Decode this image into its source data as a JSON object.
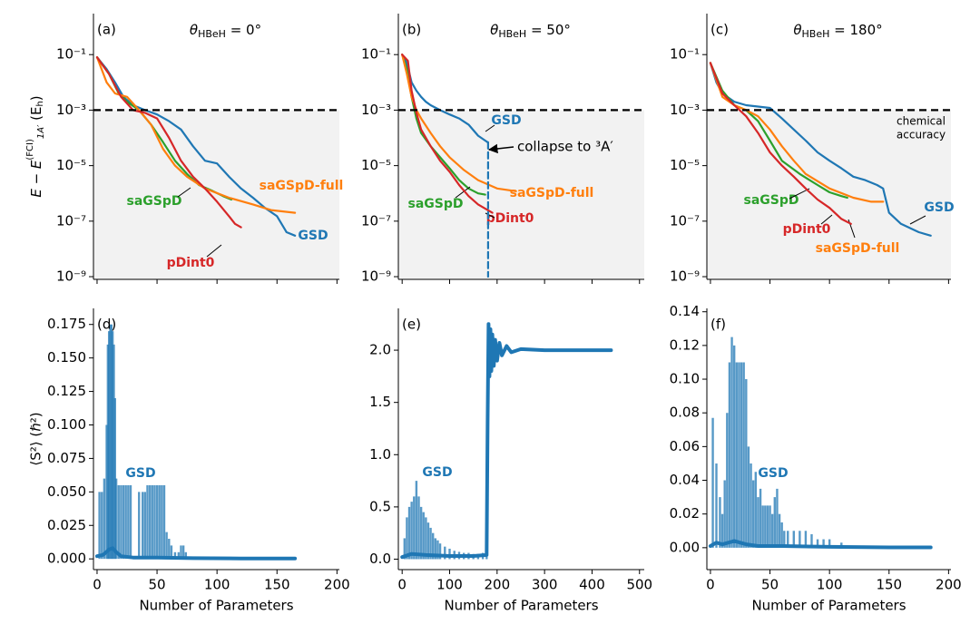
{
  "chart_data": [
    {
      "type": "line",
      "panel": "(a)",
      "title_symbol": "θ",
      "title_subscript": "HBeH",
      "title_rest": " = 0°",
      "log_y": true,
      "ylim": [
        8e-10,
        3
      ],
      "xlim": [
        -3,
        202
      ],
      "xticks": [
        0,
        50,
        100,
        150,
        200
      ],
      "xticklabels": false,
      "yticks": [
        {
          "value": 1e-09,
          "label": "10⁻⁹"
        },
        {
          "value": 1e-07,
          "label": "10⁻⁷"
        },
        {
          "value": 1e-05,
          "label": "10⁻⁵"
        },
        {
          "value": 0.001,
          "label": "10⁻³"
        },
        {
          "value": 0.1,
          "label": "10⁻¹"
        }
      ],
      "threshold": 0.001,
      "ylabel": {
        "main": "E − E",
        "sup": "(FCI)",
        "sub": "1A′",
        "unit": " (E",
        "unit_sub": "h",
        "close": ")"
      },
      "series": [
        {
          "name": "GSD",
          "color": "#1f77b4",
          "x": [
            0,
            8,
            15,
            22,
            30,
            40,
            50,
            60,
            70,
            80,
            90,
            100,
            110,
            120,
            130,
            140,
            150,
            158,
            165
          ],
          "values": [
            0.08,
            0.03,
            0.01,
            0.003,
            0.0015,
            0.001,
            0.0007,
            0.0004,
            0.0002,
            5e-05,
            1.5e-05,
            1.2e-05,
            4e-06,
            1.5e-06,
            7e-07,
            3e-07,
            1.5e-07,
            4e-08,
            3e-08
          ]
        },
        {
          "name": "saGSpD",
          "color": "#2ca02c",
          "x": [
            0,
            10,
            18,
            25,
            35,
            45,
            55,
            65,
            75,
            85,
            95,
            105,
            112
          ],
          "values": [
            0.08,
            0.02,
            0.004,
            0.002,
            0.001,
            0.0003,
            7e-05,
            1.5e-05,
            5e-06,
            2e-06,
            1.3e-06,
            8e-07,
            6e-07
          ]
        },
        {
          "name": "saGSpD-full",
          "color": "#ff7f0e",
          "x": [
            0,
            8,
            15,
            25,
            35,
            45,
            55,
            65,
            75,
            90,
            110,
            130,
            145,
            165
          ],
          "values": [
            0.08,
            0.01,
            0.004,
            0.003,
            0.001,
            0.0003,
            4e-05,
            1e-05,
            4e-06,
            1.5e-06,
            7e-07,
            4e-07,
            2.5e-07,
            2e-07
          ]
        },
        {
          "name": "pDint0",
          "color": "#d62728",
          "x": [
            0,
            10,
            20,
            30,
            40,
            50,
            60,
            70,
            80,
            90,
            100,
            110,
            115,
            120
          ],
          "values": [
            0.08,
            0.02,
            0.003,
            0.001,
            0.0008,
            0.0005,
            0.0001,
            1.5e-05,
            4e-06,
            1.5e-06,
            5e-07,
            1.5e-07,
            8e-08,
            6e-08
          ]
        }
      ]
    },
    {
      "type": "line",
      "panel": "(b)",
      "title_symbol": "θ",
      "title_subscript": "HBeH",
      "title_rest": " = 50°",
      "log_y": true,
      "ylim": [
        8e-10,
        3
      ],
      "xlim": [
        -8,
        510
      ],
      "xticks": [
        0,
        100,
        200,
        300,
        400,
        500
      ],
      "xticklabels": false,
      "yticks": [
        {
          "value": 1e-09,
          "label": "10⁻⁹"
        },
        {
          "value": 1e-07,
          "label": "10⁻⁷"
        },
        {
          "value": 1e-05,
          "label": "10⁻⁵"
        },
        {
          "value": 0.001,
          "label": "10⁻³"
        },
        {
          "value": 0.1,
          "label": "10⁻¹"
        }
      ],
      "threshold": 0.001,
      "annotations": [
        "collapse to ³A′"
      ],
      "series": [
        {
          "name": "GSD",
          "color": "#1f77b4",
          "x": [
            0,
            10,
            20,
            30,
            40,
            50,
            60,
            80,
            100,
            120,
            140,
            160,
            175,
            180
          ],
          "values": [
            0.1,
            0.05,
            0.01,
            0.005,
            0.003,
            0.002,
            0.0015,
            0.001,
            0.0007,
            0.0005,
            0.0003,
            0.00012,
            8e-05,
            7e-05
          ]
        },
        {
          "name": "saGSpD",
          "color": "#2ca02c",
          "x": [
            0,
            10,
            20,
            30,
            40,
            60,
            80,
            100,
            120,
            140,
            160,
            175
          ],
          "values": [
            0.1,
            0.03,
            0.003,
            0.0005,
            0.00015,
            5e-05,
            2e-05,
            8e-06,
            3e-06,
            1.5e-06,
            1e-06,
            9e-07
          ]
        },
        {
          "name": "saGSpD-full",
          "color": "#ff7f0e",
          "x": [
            0,
            10,
            20,
            30,
            40,
            60,
            80,
            100,
            130,
            160,
            200,
            240
          ],
          "values": [
            0.1,
            0.02,
            0.003,
            0.001,
            0.0005,
            0.00015,
            5e-05,
            2e-05,
            7e-06,
            3e-06,
            1.5e-06,
            1.2e-06
          ]
        },
        {
          "name": "pDint0",
          "color": "#d62728",
          "x": [
            0,
            12,
            20,
            30,
            40,
            60,
            80,
            100,
            120,
            140,
            160,
            180,
            190
          ],
          "values": [
            0.1,
            0.06,
            0.005,
            0.0008,
            0.0002,
            5e-05,
            1.5e-05,
            6e-06,
            2e-06,
            8e-07,
            4e-07,
            2.5e-07,
            2e-07
          ]
        },
        {
          "color": "#1f77b4",
          "dashed": true,
          "x": [
            181,
            181
          ],
          "values": [
            7e-05,
            1e-09
          ]
        }
      ]
    },
    {
      "type": "line",
      "panel": "(c)",
      "title_symbol": "θ",
      "title_subscript": "HBeH",
      "title_rest": " = 180°",
      "log_y": true,
      "ylim": [
        8e-10,
        3
      ],
      "xlim": [
        -3,
        202
      ],
      "xticks": [
        0,
        50,
        100,
        150,
        200
      ],
      "xticklabels": false,
      "yticks": [
        {
          "value": 1e-09,
          "label": "10⁻⁹"
        },
        {
          "value": 1e-07,
          "label": "10⁻⁷"
        },
        {
          "value": 1e-05,
          "label": "10⁻⁵"
        },
        {
          "value": 0.001,
          "label": "10⁻³"
        },
        {
          "value": 0.1,
          "label": "10⁻¹"
        }
      ],
      "threshold": 0.001,
      "annotations": [
        "chemical",
        "accuracy"
      ],
      "series": [
        {
          "name": "GSD",
          "color": "#1f77b4",
          "x": [
            0,
            5,
            10,
            20,
            30,
            50,
            60,
            70,
            80,
            90,
            100,
            110,
            120,
            130,
            140,
            145,
            150,
            160,
            175,
            185
          ],
          "values": [
            0.05,
            0.01,
            0.004,
            0.002,
            0.0015,
            0.0012,
            0.0005,
            0.0002,
            8e-05,
            3e-05,
            1.5e-05,
            8e-06,
            4e-06,
            3e-06,
            2e-06,
            1.5e-06,
            2e-07,
            8e-08,
            4e-08,
            3e-08
          ]
        },
        {
          "name": "saGSpD",
          "color": "#2ca02c",
          "x": [
            0,
            10,
            20,
            30,
            40,
            50,
            60,
            75,
            90,
            100,
            110,
            115
          ],
          "values": [
            0.05,
            0.005,
            0.0015,
            0.001,
            0.0004,
            8e-05,
            1.5e-05,
            5e-06,
            2e-06,
            1.1e-06,
            8e-07,
            7e-07
          ]
        },
        {
          "name": "saGSpD-full",
          "color": "#ff7f0e",
          "x": [
            0,
            10,
            20,
            30,
            40,
            50,
            60,
            70,
            80,
            100,
            120,
            135,
            145
          ],
          "values": [
            0.05,
            0.003,
            0.0015,
            0.001,
            0.0006,
            0.0002,
            5e-05,
            1.5e-05,
            5e-06,
            1.5e-06,
            7e-07,
            5e-07,
            5e-07
          ]
        },
        {
          "name": "pDint0",
          "color": "#d62728",
          "x": [
            0,
            10,
            20,
            30,
            40,
            50,
            60,
            70,
            80,
            90,
            100,
            110,
            118
          ],
          "values": [
            0.05,
            0.004,
            0.0015,
            0.0006,
            0.00015,
            3e-05,
            1e-05,
            4e-06,
            1.5e-06,
            6e-07,
            3e-07,
            1.2e-07,
            8e-08
          ]
        }
      ]
    },
    {
      "type": "bar",
      "panel": "(d)",
      "xlabel": "Number of Parameters",
      "ylabel_text": "⟨S²⟩ (ℏ²)",
      "ylim": [
        -0.008,
        0.187
      ],
      "xlim": [
        -3,
        202
      ],
      "xticks": [
        0,
        50,
        100,
        150,
        200
      ],
      "yticks": [
        {
          "value": 0,
          "label": "0.000"
        },
        {
          "value": 0.025,
          "label": "0.025"
        },
        {
          "value": 0.05,
          "label": "0.050"
        },
        {
          "value": 0.075,
          "label": "0.075"
        },
        {
          "value": 0.1,
          "label": "0.100"
        },
        {
          "value": 0.125,
          "label": "0.125"
        },
        {
          "value": 0.15,
          "label": "0.150"
        },
        {
          "value": 0.175,
          "label": "0.175"
        }
      ],
      "series": [
        {
          "name": "GSD",
          "color": "#1f77b4",
          "x": [
            2,
            4,
            6,
            8,
            9,
            10,
            11,
            12,
            13,
            14,
            15,
            16,
            18,
            20,
            22,
            24,
            26,
            28,
            35,
            38,
            40,
            42,
            44,
            46,
            48,
            50,
            52,
            54,
            56,
            58,
            60,
            62,
            65,
            68,
            70,
            72,
            74
          ],
          "values": [
            0.05,
            0.05,
            0.06,
            0.1,
            0.16,
            0.17,
            0.175,
            0.175,
            0.17,
            0.16,
            0.12,
            0.06,
            0.055,
            0.055,
            0.055,
            0.055,
            0.055,
            0.055,
            0.05,
            0.05,
            0.05,
            0.055,
            0.055,
            0.055,
            0.055,
            0.055,
            0.055,
            0.055,
            0.055,
            0.02,
            0.015,
            0.01,
            0.005,
            0.005,
            0.01,
            0.01,
            0.005
          ]
        },
        {
          "type": "line",
          "color": "#1f77b4",
          "x": [
            0,
            5,
            10,
            13,
            16,
            20,
            30,
            50,
            80,
            120,
            165
          ],
          "values": [
            0.002,
            0.003,
            0.007,
            0.008,
            0.005,
            0.002,
            0.001,
            0.001,
            0.0005,
            0.0003,
            0.0003
          ]
        }
      ]
    },
    {
      "type": "bar",
      "panel": "(e)",
      "xlabel": "Number of Parameters",
      "ylim": [
        -0.1,
        2.4
      ],
      "xlim": [
        -8,
        510
      ],
      "xticks": [
        0,
        100,
        200,
        300,
        400,
        500
      ],
      "yticks": [
        {
          "value": 0,
          "label": "0.0"
        },
        {
          "value": 0.5,
          "label": "0.5"
        },
        {
          "value": 1,
          "label": "1.0"
        },
        {
          "value": 1.5,
          "label": "1.5"
        },
        {
          "value": 2,
          "label": "2.0"
        }
      ],
      "series": [
        {
          "name": "GSD",
          "color": "#1f77b4",
          "x": [
            5,
            10,
            15,
            20,
            25,
            30,
            35,
            40,
            45,
            50,
            55,
            60,
            65,
            70,
            75,
            80,
            90,
            100,
            110,
            120,
            130,
            140,
            150,
            160,
            170,
            178
          ],
          "values": [
            0.2,
            0.4,
            0.5,
            0.55,
            0.6,
            0.75,
            0.6,
            0.5,
            0.45,
            0.4,
            0.35,
            0.3,
            0.25,
            0.2,
            0.18,
            0.15,
            0.12,
            0.1,
            0.08,
            0.07,
            0.06,
            0.06,
            0.05,
            0.05,
            0.06,
            0.07
          ]
        },
        {
          "type": "line",
          "color": "#1f77b4",
          "x": [
            0,
            20,
            50,
            100,
            150,
            178,
            180,
            182,
            184,
            186,
            188,
            190,
            193,
            196,
            200,
            205,
            210,
            220,
            230,
            250,
            300,
            350,
            400,
            440
          ],
          "values": [
            0.02,
            0.05,
            0.04,
            0.03,
            0.03,
            0.04,
            1.33,
            2.25,
            1.75,
            2.2,
            1.8,
            2.15,
            1.85,
            2.1,
            1.9,
            2.07,
            1.95,
            2.04,
            1.98,
            2.01,
            2.0,
            2.0,
            2.0,
            2.0
          ]
        }
      ]
    },
    {
      "type": "bar",
      "panel": "(f)",
      "xlabel": "Number of Parameters",
      "ylim": [
        -0.013,
        0.142
      ],
      "xlim": [
        -3,
        202
      ],
      "xticks": [
        0,
        50,
        100,
        150,
        200
      ],
      "yticks": [
        {
          "value": 0,
          "label": "0.00"
        },
        {
          "value": 0.02,
          "label": "0.02"
        },
        {
          "value": 0.04,
          "label": "0.04"
        },
        {
          "value": 0.06,
          "label": "0.06"
        },
        {
          "value": 0.08,
          "label": "0.08"
        },
        {
          "value": 0.1,
          "label": "0.10"
        },
        {
          "value": 0.12,
          "label": "0.12"
        },
        {
          "value": 0.14,
          "label": "0.14"
        }
      ],
      "series": [
        {
          "name": "GSD",
          "color": "#1f77b4",
          "x": [
            2,
            5,
            8,
            10,
            12,
            14,
            16,
            18,
            20,
            22,
            24,
            26,
            28,
            30,
            32,
            34,
            36,
            38,
            40,
            42,
            44,
            46,
            48,
            50,
            52,
            54,
            56,
            58,
            60,
            62,
            65,
            70,
            75,
            80,
            85,
            90,
            95,
            100,
            110
          ],
          "values": [
            0.077,
            0.05,
            0.03,
            0.02,
            0.04,
            0.08,
            0.11,
            0.125,
            0.12,
            0.11,
            0.11,
            0.11,
            0.11,
            0.1,
            0.06,
            0.05,
            0.04,
            0.045,
            0.03,
            0.035,
            0.025,
            0.025,
            0.025,
            0.025,
            0.02,
            0.03,
            0.035,
            0.02,
            0.015,
            0.01,
            0.01,
            0.01,
            0.01,
            0.01,
            0.008,
            0.005,
            0.005,
            0.005,
            0.003
          ]
        },
        {
          "type": "line",
          "color": "#1f77b4",
          "x": [
            0,
            5,
            10,
            15,
            20,
            25,
            30,
            40,
            60,
            100,
            150,
            185
          ],
          "values": [
            0.001,
            0.003,
            0.002,
            0.003,
            0.004,
            0.003,
            0.002,
            0.001,
            0.001,
            0.0005,
            0.0002,
            0.0002
          ]
        }
      ]
    }
  ]
}
